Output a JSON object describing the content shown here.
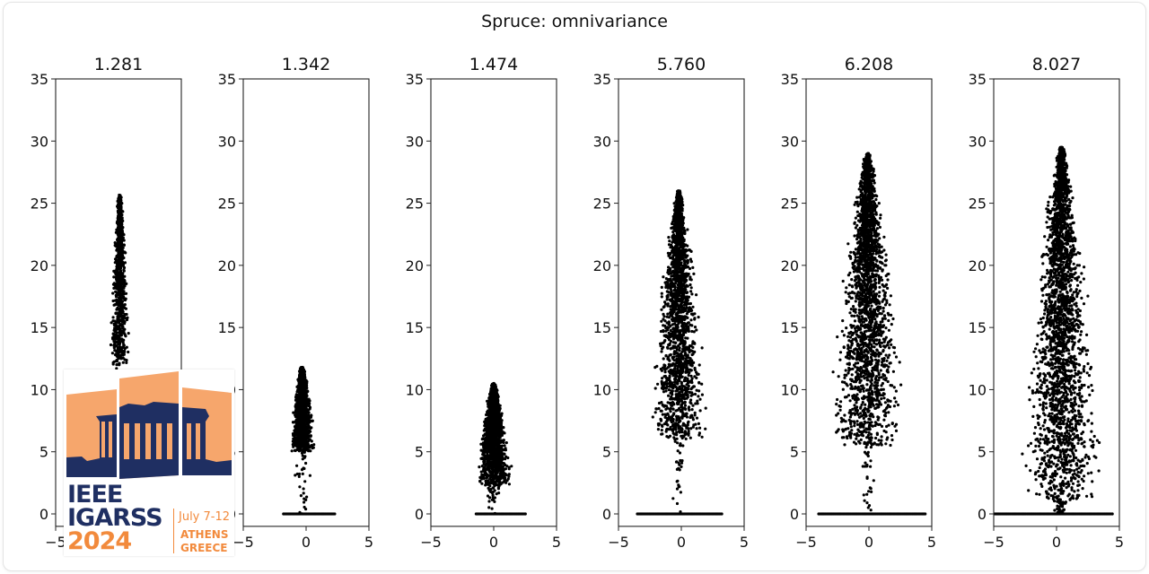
{
  "figure": {
    "suptitle": "Spruce: omnivariance",
    "colors": {
      "points": "#000000",
      "axes": "#222222",
      "text": "#111111"
    }
  },
  "chart_data": {
    "type": "scatter",
    "title": "Spruce: omnivariance",
    "layout": "1x6 subplots, shared y range",
    "xlabel": "",
    "ylabel": "",
    "xlim": [
      -5,
      5
    ],
    "ylim": [
      -1,
      35
    ],
    "xticks": [
      -5,
      0,
      5
    ],
    "yticks": [
      0,
      5,
      10,
      15,
      20,
      25,
      30,
      35
    ],
    "grid": false,
    "legend": null,
    "panels": [
      {
        "title": "1.281",
        "tree_height": 25.7,
        "crown_base": 12,
        "x_center": 0.1,
        "crown_halfwidth_max": 0.9,
        "ground_xmin": null,
        "ground_xmax": null,
        "ground_visible": false,
        "shape": "narrow column"
      },
      {
        "title": "1.342",
        "tree_height": 11.8,
        "crown_base": 5,
        "x_center": -0.3,
        "crown_halfwidth_max": 1.3,
        "ground_xmin": -1.8,
        "ground_xmax": 2.3,
        "ground_visible": true,
        "shape": "small cone"
      },
      {
        "title": "1.474",
        "tree_height": 10.5,
        "crown_base": 2.3,
        "x_center": 0.0,
        "crown_halfwidth_max": 1.8,
        "ground_xmin": -1.4,
        "ground_xmax": 2.6,
        "ground_visible": true,
        "shape": "small cone"
      },
      {
        "title": "5.760",
        "tree_height": 26.0,
        "crown_base": 6,
        "x_center": -0.2,
        "crown_halfwidth_max": 3.0,
        "ground_xmin": -3.5,
        "ground_xmax": 3.3,
        "ground_visible": true,
        "shape": "conical crown"
      },
      {
        "title": "6.208",
        "tree_height": 29.0,
        "crown_base": 5.5,
        "x_center": -0.1,
        "crown_halfwidth_max": 3.9,
        "ground_xmin": -4.0,
        "ground_xmax": 4.5,
        "ground_visible": true,
        "shape": "conical crown with visible stem"
      },
      {
        "title": "8.027",
        "tree_height": 29.5,
        "crown_base": 1.0,
        "x_center": 0.4,
        "crown_halfwidth_max": 4.4,
        "ground_xmin": -5.0,
        "ground_xmax": 4.5,
        "ground_visible": true,
        "shape": "dense broad crown"
      }
    ]
  },
  "logo": {
    "line1": "IEEE",
    "line2": "IGARSS",
    "line3": "2024",
    "date": "July 7-12",
    "city": "ATHENS",
    "country": "GREECE",
    "colors": {
      "navy": "#1f2f62",
      "orange": "#f6a66c",
      "accent": "#f28a3c"
    }
  }
}
